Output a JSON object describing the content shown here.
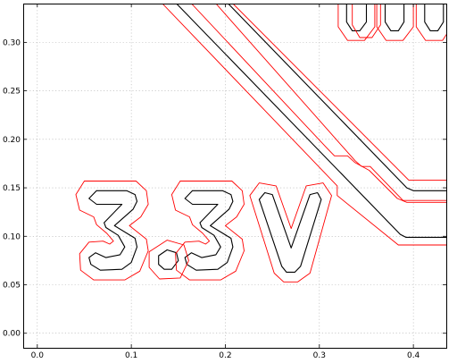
{
  "chart_data": {
    "type": "line",
    "title": "",
    "xlabel": "",
    "ylabel": "",
    "xlim": [
      -0.015,
      0.435
    ],
    "ylim": [
      -0.015,
      0.34
    ],
    "grid": true,
    "x_ticks": [
      {
        "value": 0.0,
        "label": "0.0"
      },
      {
        "value": 0.1,
        "label": "0.1"
      },
      {
        "value": 0.2,
        "label": "0.2"
      },
      {
        "value": 0.3,
        "label": "0.3"
      },
      {
        "value": 0.4,
        "label": "0.4"
      }
    ],
    "y_ticks": [
      {
        "value": 0.0,
        "label": "0.00"
      },
      {
        "value": 0.05,
        "label": "0.05"
      },
      {
        "value": 0.1,
        "label": "0.10"
      },
      {
        "value": 0.15,
        "label": "0.15"
      },
      {
        "value": 0.2,
        "label": "0.20"
      },
      {
        "value": 0.25,
        "label": "0.25"
      },
      {
        "value": 0.3,
        "label": "0.30"
      }
    ],
    "series": [
      {
        "color": "#000000",
        "role": "outline",
        "paths": [
          [
            [
              0.063,
              0.147
            ],
            [
              0.095,
              0.147
            ],
            [
              0.104,
              0.143
            ],
            [
              0.106,
              0.136
            ],
            [
              0.102,
              0.128
            ],
            [
              0.082,
              0.111
            ],
            [
              0.104,
              0.098
            ],
            [
              0.106,
              0.089
            ],
            [
              0.1,
              0.073
            ],
            [
              0.09,
              0.066
            ],
            [
              0.067,
              0.065
            ],
            [
              0.057,
              0.071
            ],
            [
              0.055,
              0.078
            ],
            [
              0.062,
              0.083
            ],
            [
              0.073,
              0.078
            ],
            [
              0.088,
              0.081
            ],
            [
              0.093,
              0.089
            ],
            [
              0.086,
              0.101
            ],
            [
              0.073,
              0.109
            ],
            [
              0.071,
              0.114
            ],
            [
              0.09,
              0.133
            ],
            [
              0.063,
              0.133
            ],
            [
              0.055,
              0.139
            ],
            [
              0.063,
              0.147
            ]
          ],
          [
            [
              0.138,
              0.086
            ],
            [
              0.148,
              0.083
            ],
            [
              0.15,
              0.075
            ],
            [
              0.143,
              0.066
            ],
            [
              0.135,
              0.066
            ],
            [
              0.129,
              0.071
            ],
            [
              0.129,
              0.08
            ],
            [
              0.138,
              0.086
            ]
          ],
          [
            [
              0.165,
              0.147
            ],
            [
              0.197,
              0.147
            ],
            [
              0.206,
              0.143
            ],
            [
              0.208,
              0.136
            ],
            [
              0.204,
              0.128
            ],
            [
              0.184,
              0.111
            ],
            [
              0.206,
              0.098
            ],
            [
              0.208,
              0.089
            ],
            [
              0.202,
              0.073
            ],
            [
              0.192,
              0.066
            ],
            [
              0.169,
              0.065
            ],
            [
              0.159,
              0.071
            ],
            [
              0.157,
              0.078
            ],
            [
              0.164,
              0.083
            ],
            [
              0.175,
              0.078
            ],
            [
              0.19,
              0.081
            ],
            [
              0.195,
              0.089
            ],
            [
              0.188,
              0.101
            ],
            [
              0.175,
              0.109
            ],
            [
              0.173,
              0.114
            ],
            [
              0.192,
              0.133
            ],
            [
              0.165,
              0.133
            ],
            [
              0.157,
              0.139
            ],
            [
              0.165,
              0.147
            ]
          ],
          [
            [
              0.236,
              0.138
            ],
            [
              0.26,
              0.069
            ],
            [
              0.265,
              0.063
            ],
            [
              0.274,
              0.063
            ],
            [
              0.28,
              0.069
            ],
            [
              0.302,
              0.138
            ],
            [
              0.298,
              0.145
            ],
            [
              0.29,
              0.143
            ],
            [
              0.27,
              0.088
            ],
            [
              0.25,
              0.143
            ],
            [
              0.242,
              0.145
            ],
            [
              0.236,
              0.138
            ]
          ],
          [
            [
              0.203,
              0.34
            ],
            [
              0.393,
              0.15
            ],
            [
              0.4,
              0.147
            ],
            [
              0.435,
              0.147
            ]
          ],
          [
            [
              0.148,
              0.34
            ],
            [
              0.386,
              0.102
            ],
            [
              0.392,
              0.099
            ],
            [
              0.435,
              0.099
            ]
          ],
          [
            [
              0.329,
              0.34
            ],
            [
              0.329,
              0.321
            ],
            [
              0.335,
              0.312
            ],
            [
              0.343,
              0.312
            ],
            [
              0.35,
              0.321
            ],
            [
              0.35,
              0.34
            ]
          ],
          [
            [
              0.37,
              0.34
            ],
            [
              0.37,
              0.321
            ],
            [
              0.376,
              0.312
            ],
            [
              0.384,
              0.312
            ],
            [
              0.39,
              0.321
            ],
            [
              0.39,
              0.34
            ]
          ],
          [
            [
              0.412,
              0.34
            ],
            [
              0.412,
              0.321
            ],
            [
              0.418,
              0.312
            ],
            [
              0.426,
              0.312
            ],
            [
              0.432,
              0.321
            ],
            [
              0.432,
              0.34
            ]
          ]
        ]
      },
      {
        "color": "#ff0000",
        "role": "clearance",
        "paths": [
          [
            [
              0.05,
              0.157
            ],
            [
              0.105,
              0.157
            ],
            [
              0.116,
              0.147
            ],
            [
              0.118,
              0.133
            ],
            [
              0.11,
              0.12
            ],
            [
              0.098,
              0.111
            ],
            [
              0.116,
              0.097
            ],
            [
              0.118,
              0.085
            ],
            [
              0.109,
              0.064
            ],
            [
              0.093,
              0.055
            ],
            [
              0.06,
              0.055
            ],
            [
              0.046,
              0.065
            ],
            [
              0.045,
              0.082
            ],
            [
              0.055,
              0.094
            ],
            [
              0.07,
              0.095
            ],
            [
              0.077,
              0.092
            ],
            [
              0.081,
              0.095
            ],
            [
              0.074,
              0.103
            ],
            [
              0.063,
              0.112
            ],
            [
              0.06,
              0.12
            ],
            [
              0.045,
              0.127
            ],
            [
              0.041,
              0.143
            ],
            [
              0.05,
              0.157
            ]
          ],
          [
            [
              0.138,
              0.096
            ],
            [
              0.156,
              0.091
            ],
            [
              0.161,
              0.075
            ],
            [
              0.152,
              0.057
            ],
            [
              0.13,
              0.056
            ],
            [
              0.119,
              0.068
            ],
            [
              0.119,
              0.084
            ],
            [
              0.138,
              0.096
            ]
          ],
          [
            [
              0.152,
              0.157
            ],
            [
              0.207,
              0.157
            ],
            [
              0.218,
              0.147
            ],
            [
              0.22,
              0.133
            ],
            [
              0.212,
              0.12
            ],
            [
              0.2,
              0.111
            ],
            [
              0.218,
              0.097
            ],
            [
              0.22,
              0.085
            ],
            [
              0.211,
              0.064
            ],
            [
              0.195,
              0.055
            ],
            [
              0.162,
              0.055
            ],
            [
              0.148,
              0.065
            ],
            [
              0.147,
              0.082
            ],
            [
              0.157,
              0.094
            ],
            [
              0.172,
              0.095
            ],
            [
              0.179,
              0.092
            ],
            [
              0.183,
              0.095
            ],
            [
              0.176,
              0.103
            ],
            [
              0.165,
              0.112
            ],
            [
              0.162,
              0.12
            ],
            [
              0.147,
              0.127
            ],
            [
              0.143,
              0.143
            ],
            [
              0.152,
              0.157
            ]
          ],
          [
            [
              0.226,
              0.142
            ],
            [
              0.252,
              0.062
            ],
            [
              0.262,
              0.053
            ],
            [
              0.277,
              0.053
            ],
            [
              0.29,
              0.062
            ],
            [
              0.313,
              0.142
            ],
            [
              0.304,
              0.155
            ],
            [
              0.286,
              0.152
            ],
            [
              0.27,
              0.108
            ],
            [
              0.254,
              0.152
            ],
            [
              0.236,
              0.155
            ],
            [
              0.226,
              0.142
            ]
          ],
          [
            [
              0.19,
              0.34
            ],
            [
              0.338,
              0.178
            ],
            [
              0.345,
              0.172
            ],
            [
              0.354,
              0.172
            ],
            [
              0.389,
              0.137
            ],
            [
              0.435,
              0.137
            ]
          ],
          [
            [
              0.208,
              0.34
            ],
            [
              0.395,
              0.158
            ],
            [
              0.435,
              0.158
            ]
          ],
          [
            [
              0.133,
              0.34
            ],
            [
              0.319,
              0.152
            ],
            [
              0.319,
              0.142
            ],
            [
              0.384,
              0.091
            ],
            [
              0.435,
              0.091
            ]
          ],
          [
            [
              0.164,
              0.34
            ],
            [
              0.308,
              0.191
            ],
            [
              0.316,
              0.183
            ],
            [
              0.33,
              0.183
            ],
            [
              0.338,
              0.176
            ],
            [
              0.353,
              0.168
            ],
            [
              0.383,
              0.139
            ],
            [
              0.393,
              0.135
            ],
            [
              0.435,
              0.135
            ]
          ],
          [
            [
              0.335,
              0.34
            ],
            [
              0.335,
              0.318
            ],
            [
              0.343,
              0.305
            ],
            [
              0.356,
              0.305
            ],
            [
              0.365,
              0.318
            ],
            [
              0.365,
              0.34
            ]
          ],
          [
            [
              0.32,
              0.34
            ],
            [
              0.32,
              0.316
            ],
            [
              0.33,
              0.302
            ],
            [
              0.348,
              0.302
            ],
            [
              0.359,
              0.316
            ],
            [
              0.359,
              0.34
            ]
          ],
          [
            [
              0.361,
              0.34
            ],
            [
              0.361,
              0.316
            ],
            [
              0.371,
              0.302
            ],
            [
              0.389,
              0.302
            ],
            [
              0.4,
              0.316
            ],
            [
              0.4,
              0.34
            ]
          ],
          [
            [
              0.403,
              0.34
            ],
            [
              0.403,
              0.316
            ],
            [
              0.413,
              0.302
            ],
            [
              0.431,
              0.302
            ],
            [
              0.435,
              0.308
            ]
          ]
        ]
      }
    ]
  }
}
